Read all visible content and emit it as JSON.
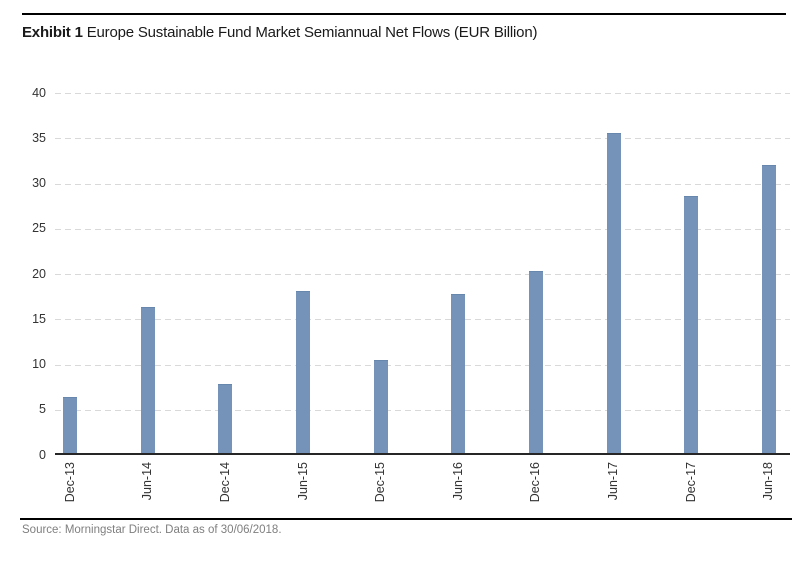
{
  "header": {
    "exhibit_label": "Exhibit 1",
    "title_rest": "Europe Sustainable Fund Market Semiannual Net Flows (EUR Billion)"
  },
  "chart_data": {
    "type": "bar",
    "title": "Exhibit 1 Europe Sustainable Fund Market Semiannual Net Flows (EUR Billion)",
    "categories": [
      "Dec-13",
      "Jun-14",
      "Dec-14",
      "Jun-15",
      "Dec-15",
      "Jun-16",
      "Dec-16",
      "Jun-17",
      "Dec-17",
      "Jun-18"
    ],
    "values": [
      6.4,
      16.4,
      7.9,
      18.1,
      10.5,
      17.8,
      20.3,
      35.6,
      28.6,
      32.1
    ],
    "xlabel": "",
    "ylabel": "",
    "ylim": [
      0,
      40
    ],
    "yticks": [
      0,
      5,
      10,
      15,
      20,
      25,
      30,
      35,
      40
    ],
    "grid": "horizontal-dashed",
    "legend": "none",
    "bar_color": "#7593b8",
    "bar_border_color": "#6787ad",
    "gridline_color": "#d9d9d9",
    "axis_color": "#262626",
    "tick_label_color": "#333333"
  },
  "footer": {
    "source": "Source: Morningstar Direct. Data as of 30/06/2018."
  }
}
